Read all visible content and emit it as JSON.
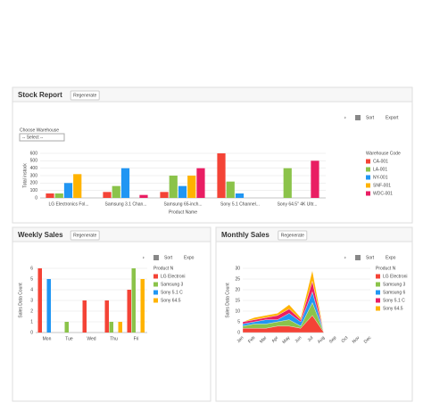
{
  "chart_data": [
    {
      "type": "bar",
      "title": "Stock Report",
      "button": "Regenerate",
      "sort_label": "Sort",
      "export_label": "Export",
      "filter_label": "Choose Warehouse",
      "filter_value": "-- Select --",
      "legend_title": "Warehouse Code",
      "x_label": "Product Name",
      "y_label": "Total instock",
      "categories": [
        "LG Electronics Fol...",
        "Samsung 3.1 Chan...",
        "Samsung 65-inch...",
        "Sony 5.1 Channel...",
        "Sony 64.5\" 4K Ultr..."
      ],
      "series": [
        {
          "name": "CA-001",
          "color": "#f44336",
          "values": [
            60,
            80,
            80,
            600,
            null
          ]
        },
        {
          "name": "LA-001",
          "color": "#8bc34a",
          "values": [
            60,
            160,
            300,
            220,
            400
          ]
        },
        {
          "name": "NY-001",
          "color": "#2196f3",
          "values": [
            200,
            400,
            160,
            60,
            null
          ]
        },
        {
          "name": "SNF-001",
          "color": "#ffb300",
          "values": [
            320,
            null,
            300,
            null,
            null
          ]
        },
        {
          "name": "WDC-001",
          "color": "#e91e63",
          "values": [
            null,
            40,
            400,
            null,
            500
          ]
        }
      ],
      "ylim": [
        0,
        600
      ],
      "yticks": [
        0,
        100,
        200,
        300,
        400,
        500,
        600
      ],
      "grid": true
    },
    {
      "type": "bar",
      "title": "Weekly Sales",
      "button": "Regenerate",
      "sort_label": "Sort",
      "export_label": "Expo",
      "legend_title": "Product N",
      "y_label": "Sales Data Count",
      "categories": [
        "Mon",
        "Tue",
        "Wed",
        "Thu",
        "Fri"
      ],
      "series": [
        {
          "name": "LG Electroni",
          "color": "#f44336",
          "values": [
            6,
            null,
            3,
            3,
            4
          ]
        },
        {
          "name": "Samsung 3",
          "color": "#8bc34a",
          "values": [
            null,
            1,
            null,
            1,
            6
          ]
        },
        {
          "name": "Sony 5.1 C",
          "color": "#2196f3",
          "values": [
            5,
            null,
            null,
            null,
            null
          ]
        },
        {
          "name": "Sony 64.5",
          "color": "#ffb300",
          "values": [
            null,
            null,
            null,
            1,
            5
          ]
        }
      ],
      "ylim": [
        0,
        6
      ],
      "yticks": [
        0,
        1,
        2,
        3,
        4,
        5,
        6
      ],
      "grid": true
    },
    {
      "type": "area",
      "title": "Monthly Sales",
      "button": "Regenerate",
      "sort_label": "Sort",
      "export_label": "Expo",
      "legend_title": "Product N",
      "y_label": "Sales Data Count",
      "categories": [
        "Jan",
        "Feb",
        "Mar",
        "Apr",
        "May",
        "Jun",
        "Jul",
        "Aug",
        "Sep",
        "Oct",
        "Nov",
        "Dec"
      ],
      "series": [
        {
          "name": "LG Electroni",
          "color": "#f44336",
          "values": [
            2,
            2,
            2,
            3,
            3,
            2,
            8,
            0,
            0,
            0,
            0,
            0
          ]
        },
        {
          "name": "Samsung 3",
          "color": "#8bc34a",
          "values": [
            1,
            2,
            2,
            2,
            3,
            1,
            6,
            0,
            0,
            0,
            0,
            0
          ]
        },
        {
          "name": "Samsung 6",
          "color": "#2196f3",
          "values": [
            1,
            1,
            2,
            1,
            3,
            2,
            5,
            0,
            0,
            0,
            0,
            0
          ]
        },
        {
          "name": "Sony 5.1 C",
          "color": "#e91e63",
          "values": [
            1,
            1,
            1,
            2,
            2,
            1,
            5,
            0,
            0,
            0,
            0,
            0
          ]
        },
        {
          "name": "Sony 64.5",
          "color": "#ffb300",
          "values": [
            0,
            1,
            1,
            1,
            2,
            1,
            5,
            0,
            0,
            0,
            0,
            0
          ]
        }
      ],
      "ylim": [
        0,
        30
      ],
      "yticks": [
        0,
        5,
        10,
        15,
        20,
        25,
        30
      ],
      "grid": true
    }
  ]
}
